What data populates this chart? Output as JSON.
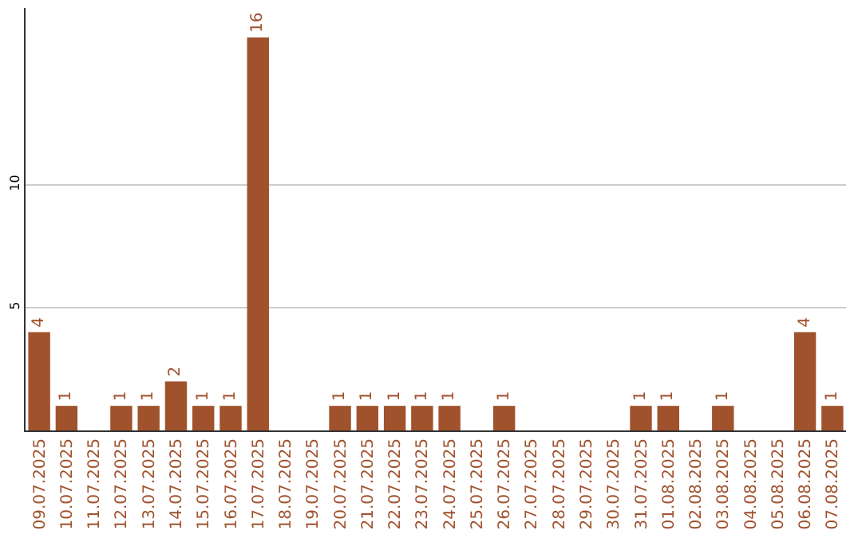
{
  "chart_data": {
    "type": "bar",
    "categories": [
      "09.07.2025",
      "10.07.2025",
      "11.07.2025",
      "12.07.2025",
      "13.07.2025",
      "14.07.2025",
      "15.07.2025",
      "16.07.2025",
      "17.07.2025",
      "18.07.2025",
      "19.07.2025",
      "20.07.2025",
      "21.07.2025",
      "22.07.2025",
      "23.07.2025",
      "24.07.2025",
      "25.07.2025",
      "26.07.2025",
      "27.07.2025",
      "28.07.2025",
      "29.07.2025",
      "30.07.2025",
      "31.07.2025",
      "01.08.2025",
      "02.08.2025",
      "03.08.2025",
      "04.08.2025",
      "05.08.2025",
      "06.08.2025",
      "07.08.2025"
    ],
    "values": [
      4,
      1,
      0,
      1,
      1,
      2,
      1,
      1,
      16,
      0,
      0,
      1,
      1,
      1,
      1,
      1,
      0,
      1,
      0,
      0,
      0,
      0,
      1,
      1,
      0,
      1,
      0,
      0,
      4,
      1
    ],
    "value_labels": [
      "4",
      "1",
      null,
      "1",
      "1",
      "2",
      "1",
      "1",
      "16",
      null,
      null,
      "1",
      "1",
      "1",
      "1",
      "1",
      null,
      "1",
      null,
      null,
      null,
      null,
      "1",
      "1",
      null,
      "1",
      null,
      null,
      "4",
      "1"
    ],
    "color": "#a0522d",
    "ylim": [
      0,
      17.2
    ],
    "yticks": [
      5,
      10
    ],
    "grid": "y"
  }
}
